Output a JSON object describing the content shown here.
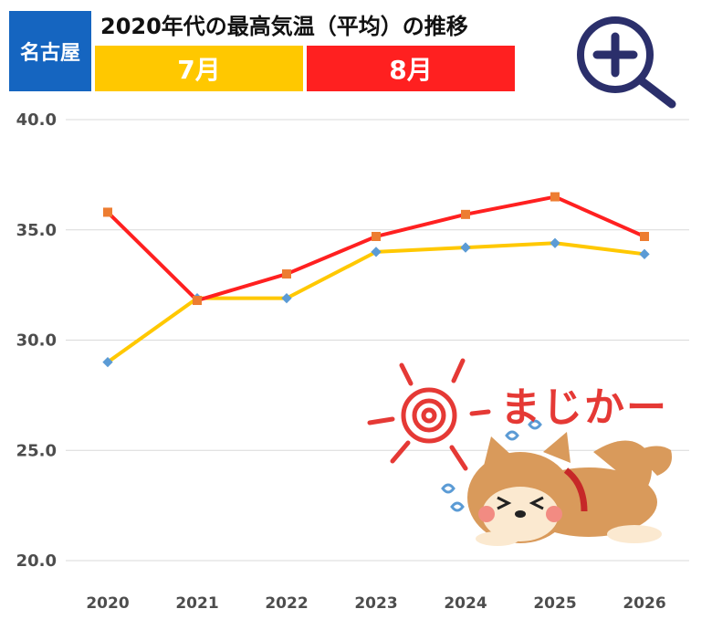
{
  "header": {
    "city": "名古屋",
    "title": "2020年代の最高気温（平均）の推移",
    "zoom_icon": "magnifier-plus-icon"
  },
  "decoration": {
    "text": "まじかー",
    "illustration": "sweating-shiba-dog-under-sun"
  },
  "colors": {
    "july": "#FFC800",
    "august": "#FF2020",
    "city_badge": "#1565C0",
    "july_marker": "#5B9BD5",
    "august_marker": "#ED7D31"
  },
  "chart_data": {
    "type": "line",
    "title": "2020年代の最高気温（平均）の推移",
    "categories": [
      "2020",
      "2021",
      "2022",
      "2023",
      "2024",
      "2025",
      "2026"
    ],
    "series": [
      {
        "name": "7月",
        "values": [
          29.0,
          31.9,
          31.9,
          34.0,
          34.2,
          34.4,
          33.9
        ]
      },
      {
        "name": "8月",
        "values": [
          35.8,
          31.8,
          33.0,
          34.7,
          35.7,
          36.5,
          34.7
        ]
      }
    ],
    "yticks": [
      "40.0",
      "35.0",
      "30.0",
      "25.0",
      "20.0"
    ],
    "ylim": [
      20,
      40
    ],
    "xlabel": "",
    "ylabel": "",
    "grid": true,
    "legend": "top"
  }
}
